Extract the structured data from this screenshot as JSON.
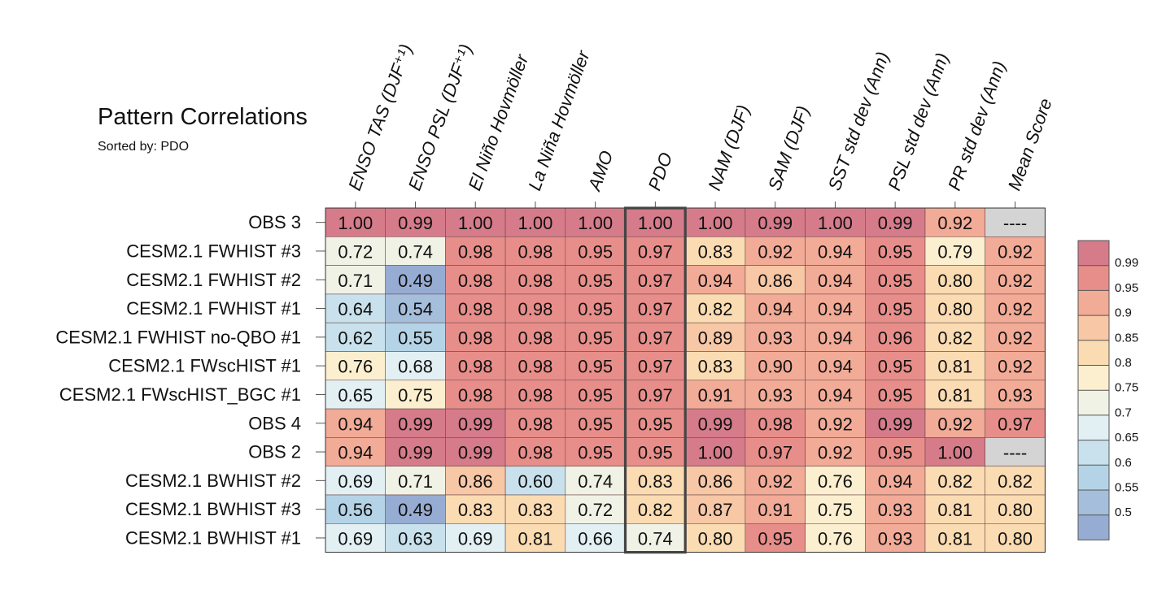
{
  "chart_data": {
    "type": "heatmap",
    "title": "Pattern Correlations",
    "subtitle": "Sorted by: PDO",
    "highlight_column": "PDO",
    "columns": [
      "ENSO TAS (DJF⁺¹)",
      "ENSO PSL (DJF⁺¹)",
      "El Niño Hovmöller",
      "La Niña Hovmöller",
      "AMO",
      "PDO",
      "NAM (DJF)",
      "SAM (DJF)",
      "SST std dev (Ann)",
      "PSL std dev (Ann)",
      "PR std dev (Ann)",
      "Mean Score"
    ],
    "rows": [
      "OBS 3",
      "CESM2.1 FWHIST #3",
      "CESM2.1 FWHIST #2",
      "CESM2.1 FWHIST #1",
      "CESM2.1 FWHIST no-QBO #1",
      "CESM2.1 FWscHIST #1",
      "CESM2.1 FWscHIST_BGC #1",
      "OBS 4",
      "OBS 2",
      "CESM2.1 BWHIST #2",
      "CESM2.1 BWHIST #3",
      "CESM2.1 BWHIST #1"
    ],
    "values": [
      [
        "1.00",
        "0.99",
        "1.00",
        "1.00",
        "1.00",
        "1.00",
        "1.00",
        "0.99",
        "1.00",
        "0.99",
        "0.92",
        "----"
      ],
      [
        "0.72",
        "0.74",
        "0.98",
        "0.98",
        "0.95",
        "0.97",
        "0.83",
        "0.92",
        "0.94",
        "0.95",
        "0.79",
        "0.92"
      ],
      [
        "0.71",
        "0.49",
        "0.98",
        "0.98",
        "0.95",
        "0.97",
        "0.94",
        "0.86",
        "0.94",
        "0.95",
        "0.80",
        "0.92"
      ],
      [
        "0.64",
        "0.54",
        "0.98",
        "0.98",
        "0.95",
        "0.97",
        "0.82",
        "0.94",
        "0.94",
        "0.95",
        "0.80",
        "0.92"
      ],
      [
        "0.62",
        "0.55",
        "0.98",
        "0.98",
        "0.95",
        "0.97",
        "0.89",
        "0.93",
        "0.94",
        "0.96",
        "0.82",
        "0.92"
      ],
      [
        "0.76",
        "0.68",
        "0.98",
        "0.98",
        "0.95",
        "0.97",
        "0.83",
        "0.90",
        "0.94",
        "0.95",
        "0.81",
        "0.92"
      ],
      [
        "0.65",
        "0.75",
        "0.98",
        "0.98",
        "0.95",
        "0.97",
        "0.91",
        "0.93",
        "0.94",
        "0.95",
        "0.81",
        "0.93"
      ],
      [
        "0.94",
        "0.99",
        "0.99",
        "0.98",
        "0.95",
        "0.95",
        "0.99",
        "0.98",
        "0.92",
        "0.99",
        "0.92",
        "0.97"
      ],
      [
        "0.94",
        "0.99",
        "0.99",
        "0.98",
        "0.95",
        "0.95",
        "1.00",
        "0.97",
        "0.92",
        "0.95",
        "1.00",
        "----"
      ],
      [
        "0.69",
        "0.71",
        "0.86",
        "0.60",
        "0.74",
        "0.83",
        "0.86",
        "0.92",
        "0.76",
        "0.94",
        "0.82",
        "0.82"
      ],
      [
        "0.56",
        "0.49",
        "0.83",
        "0.83",
        "0.72",
        "0.82",
        "0.87",
        "0.91",
        "0.75",
        "0.93",
        "0.81",
        "0.80"
      ],
      [
        "0.69",
        "0.63",
        "0.69",
        "0.81",
        "0.66",
        "0.74",
        "0.80",
        "0.95",
        "0.76",
        "0.93",
        "0.81",
        "0.80"
      ]
    ],
    "missing_color": "#d4d4d4",
    "colorbar": {
      "boundaries": [
        0.99,
        0.95,
        0.9,
        0.85,
        0.8,
        0.75,
        0.7,
        0.65,
        0.6,
        0.55,
        0.5
      ],
      "tick_labels": [
        "0.99",
        "0.95",
        "0.9",
        "0.85",
        "0.8",
        "0.75",
        "0.7",
        "0.65",
        "0.6",
        "0.55",
        "0.5"
      ],
      "colors_top_to_bottom": [
        "#d67b8a",
        "#e88e8a",
        "#f2ab97",
        "#f7c7a6",
        "#fbdcb2",
        "#fbefcf",
        "#f1f2e6",
        "#e2f0f4",
        "#c8e1ec",
        "#b5d3e7",
        "#a5bedc",
        "#97acd3"
      ]
    }
  }
}
